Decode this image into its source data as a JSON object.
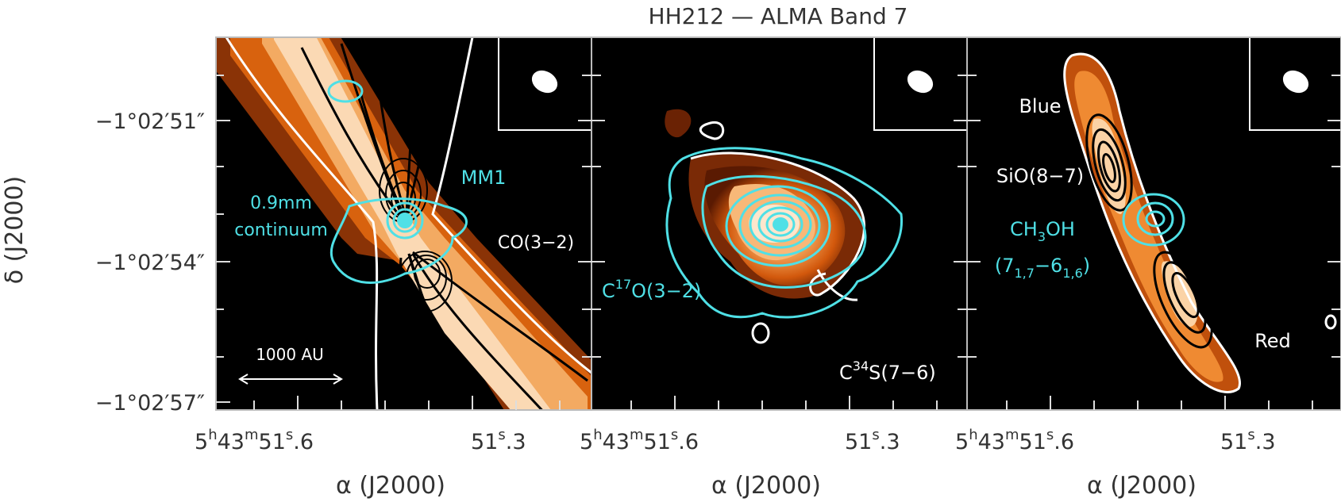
{
  "title": "HH212 —  ALMA Band 7",
  "axes": {
    "ylabel": "δ (J2000)",
    "xlabel": "α (J2000)",
    "yticks": [
      "−1°02′51″",
      "−1°02′54″",
      "−1°02′57″"
    ],
    "xticks": {
      "left": {
        "h": "5",
        "m": "43",
        "s": "51",
        "frac": ".6"
      },
      "right": {
        "s": "51",
        "frac": ".3"
      }
    }
  },
  "panels": [
    {
      "name": "CO",
      "labels": {
        "line": "CO(3−2)",
        "source": "MM1",
        "continuum_1": "0.9mm",
        "continuum_2": "continuum",
        "scalebar": "1000 AU"
      }
    },
    {
      "name": "C34S",
      "labels": {
        "c17o_pre": "C",
        "c17o_sup": "17",
        "c17o_post": "O(3−2)",
        "c34s_pre": "C",
        "c34s_sup": "34",
        "c34s_post": "S(7−6)"
      }
    },
    {
      "name": "SiO",
      "labels": {
        "blue": "Blue",
        "red": "Red",
        "sio": "SiO(8−7)",
        "ch3oh_pre": "CH",
        "ch3oh_sub": "3",
        "ch3oh_post": "OH",
        "trans_open": "(7",
        "trans_sub1": "1,7",
        "trans_mid": "−6",
        "trans_sub2": "1,6",
        "trans_close": ")"
      }
    }
  ],
  "colors": {
    "background": "#000000",
    "emission_dark": "#7a2a06",
    "emission_mid": "#e06a10",
    "emission_light": "#f8c896",
    "emission_core": "#fdeede",
    "cyan": "#4fe0e6",
    "contour_black": "#000000",
    "contour_white": "#ffffff"
  }
}
